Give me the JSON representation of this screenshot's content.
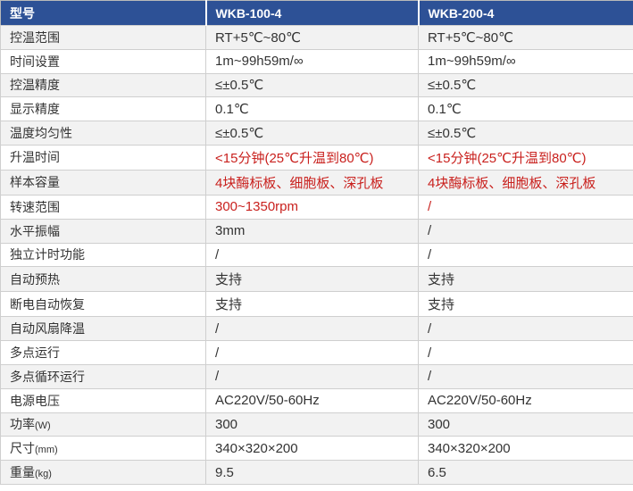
{
  "colors": {
    "header_bg": "#2d5196",
    "header_text": "#ffffff",
    "row_bg": "#ffffff",
    "row_alt_bg": "#f2f2f2",
    "border": "#cfcfcf",
    "text": "#333333",
    "red_value_text": "#c9211e"
  },
  "table": {
    "header": [
      "型号",
      "WKB-100-4",
      "WKB-200-4"
    ],
    "rows": [
      {
        "label": "控温范围",
        "unit": "",
        "values": [
          "RT+5℃~80℃",
          "RT+5℃~80℃"
        ],
        "red": false
      },
      {
        "label": "时间设置",
        "unit": "",
        "values": [
          "1m~99h59m/∞",
          "1m~99h59m/∞"
        ],
        "red": false
      },
      {
        "label": "控温精度",
        "unit": "",
        "values": [
          "≤±0.5℃",
          "≤±0.5℃"
        ],
        "red": false
      },
      {
        "label": "显示精度",
        "unit": "",
        "values": [
          "0.1℃",
          "0.1℃"
        ],
        "red": false
      },
      {
        "label": "温度均匀性",
        "unit": "",
        "values": [
          "≤±0.5℃",
          "≤±0.5℃"
        ],
        "red": false
      },
      {
        "label": "升温时间",
        "unit": "",
        "values": [
          "<15分钟(25℃升温到80℃)",
          "<15分钟(25℃升温到80℃)"
        ],
        "red": true
      },
      {
        "label": "样本容量",
        "unit": "",
        "values": [
          "4块酶标板、细胞板、深孔板",
          "4块酶标板、细胞板、深孔板"
        ],
        "red": true
      },
      {
        "label": "转速范围",
        "unit": "",
        "values": [
          "300~1350rpm",
          "/"
        ],
        "red": true
      },
      {
        "label": "水平振幅",
        "unit": "",
        "values": [
          "3mm",
          "/"
        ],
        "red": false
      },
      {
        "label": "独立计时功能",
        "unit": "",
        "values": [
          "/",
          "/"
        ],
        "red": false
      },
      {
        "label": "自动预热",
        "unit": "",
        "values": [
          "支持",
          "支持"
        ],
        "red": false
      },
      {
        "label": "断电自动恢复",
        "unit": "",
        "values": [
          "支持",
          "支持"
        ],
        "red": false
      },
      {
        "label": "自动风扇降温",
        "unit": "",
        "values": [
          "/",
          "/"
        ],
        "red": false
      },
      {
        "label": "多点运行",
        "unit": "",
        "values": [
          "/",
          "/"
        ],
        "red": false
      },
      {
        "label": "多点循环运行",
        "unit": "",
        "values": [
          "/",
          "/"
        ],
        "red": false
      },
      {
        "label": "电源电压",
        "unit": "",
        "values": [
          "AC220V/50-60Hz",
          "AC220V/50-60Hz"
        ],
        "red": false
      },
      {
        "label": "功率",
        "unit": "(W)",
        "values": [
          "300",
          "300"
        ],
        "red": false
      },
      {
        "label": "尺寸",
        "unit": "(mm)",
        "values": [
          "340×320×200",
          "340×320×200"
        ],
        "red": false
      },
      {
        "label": "重量",
        "unit": "(kg)",
        "values": [
          "9.5",
          "6.5"
        ],
        "red": false
      }
    ]
  }
}
